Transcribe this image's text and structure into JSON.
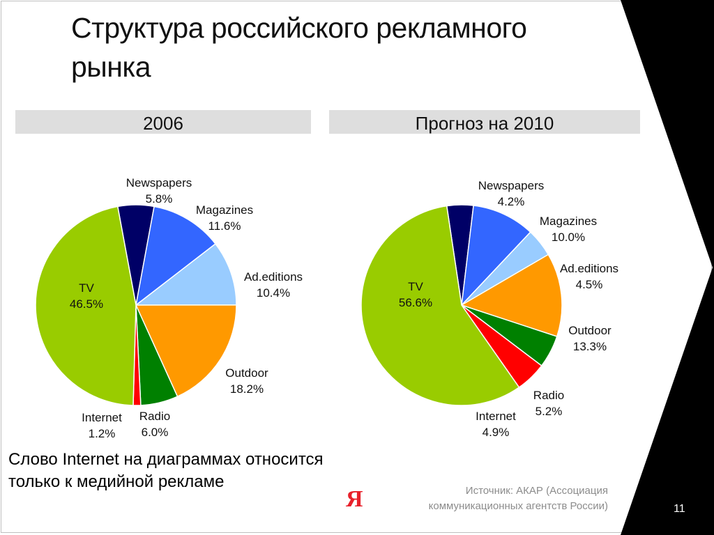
{
  "title": "Структура российского рекламного рынка",
  "note": {
    "line1": "Слово Internet на диаграммах относится",
    "line2": "только к медийной рекламе"
  },
  "source": {
    "line1": "Источник: АКАР (Ассоциация",
    "line2": "коммуникационных агентств России)"
  },
  "logo_text": "Я",
  "page_number": "11",
  "chart_data": [
    {
      "type": "pie",
      "title": "2006",
      "start_category": "Newspapers",
      "direction": "clockwise",
      "slices": [
        {
          "name": "Newspapers",
          "value": 5.8,
          "value_label": "5.8%",
          "color": "#000066"
        },
        {
          "name": "Magazines",
          "value": 11.6,
          "value_label": "11.6%",
          "color": "#3366ff"
        },
        {
          "name": "Ad.editions",
          "value": 10.4,
          "value_label": "10.4%",
          "color": "#99ccff"
        },
        {
          "name": "Outdoor",
          "value": 18.2,
          "value_label": "18.2%",
          "color": "#ff9900"
        },
        {
          "name": "Radio",
          "value": 6.0,
          "value_label": "6.0%",
          "color": "#008000"
        },
        {
          "name": "Internet",
          "value": 1.2,
          "value_label": "1.2%",
          "color": "#ff0000"
        },
        {
          "name": "TV",
          "value": 46.5,
          "value_label": "46.5%",
          "color": "#99cc00"
        }
      ]
    },
    {
      "type": "pie",
      "title": "Прогноз на 2010",
      "start_category": "Newspapers",
      "direction": "clockwise",
      "slices": [
        {
          "name": "Newspapers",
          "value": 4.2,
          "value_label": "4.2%",
          "color": "#000066"
        },
        {
          "name": "Magazines",
          "value": 10.0,
          "value_label": "10.0%",
          "color": "#3366ff"
        },
        {
          "name": "Ad.editions",
          "value": 4.5,
          "value_label": "4.5%",
          "color": "#99ccff"
        },
        {
          "name": "Outdoor",
          "value": 13.3,
          "value_label": "13.3%",
          "color": "#ff9900"
        },
        {
          "name": "Radio",
          "value": 5.2,
          "value_label": "5.2%",
          "color": "#008000"
        },
        {
          "name": "Internet",
          "value": 4.9,
          "value_label": "4.9%",
          "color": "#ff0000"
        },
        {
          "name": "TV",
          "value": 56.6,
          "value_label": "56.6%",
          "color": "#99cc00"
        }
      ]
    }
  ]
}
